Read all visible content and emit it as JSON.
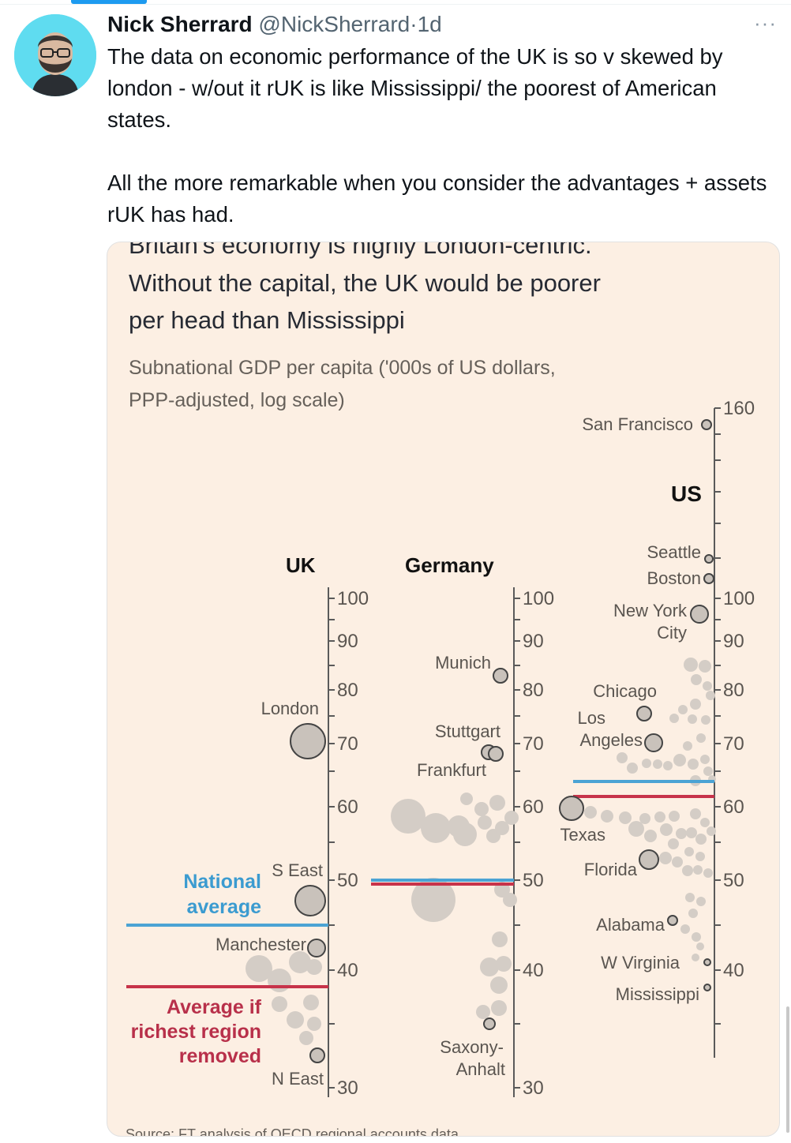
{
  "tweet": {
    "author_name": "Nick Sherrard",
    "author_handle": "@NickSherrard",
    "separator": "·",
    "time": "1d",
    "more": "···",
    "paragraphs": [
      "The data on economic performance of the UK is so v skewed by london - w/out it rUK is like Mississippi/ the poorest of American states.",
      "All the more remarkable when you consider the advantages + assets rUK has had."
    ]
  },
  "colors": {
    "accent": "#1d9bf0",
    "card_bg": "#fcefe3",
    "national_average": "#4ba3d4",
    "average_removed": "#c7334a"
  },
  "chart": {
    "title_partial": "Britain's economy is highly London-centric.",
    "title_line2": "Without the capital, the UK would be poorer",
    "title_line3": "per head than Mississippi",
    "subtitle_line1": "Subnational GDP per capita ('000s of US dollars,",
    "subtitle_line2": "PPP-adjusted, log scale)",
    "source": "Source: FT analysis of OECD regional accounts data",
    "legend_national_1": "National",
    "legend_national_2": "average",
    "legend_removed_1": "Average if",
    "legend_removed_2": "richest region",
    "legend_removed_3": "removed",
    "groups": {
      "uk": "UK",
      "germany": "Germany",
      "us": "US"
    },
    "uk_ticks": [
      "100",
      "90",
      "80",
      "70",
      "60",
      "50",
      "40",
      "30"
    ],
    "de_ticks": [
      "100",
      "90",
      "80",
      "70",
      "60",
      "50",
      "40",
      "30"
    ],
    "us_ticks": [
      "160",
      "100",
      "90",
      "80",
      "70",
      "60",
      "50",
      "40"
    ],
    "labels": {
      "london": "London",
      "s_east": "S East",
      "manchester": "Manchester",
      "n_east": "N East",
      "munich": "Munich",
      "stuttgart": "Stuttgart",
      "frankfurt": "Frankfurt",
      "saxony_1": "Saxony-",
      "saxony_2": "Anhalt",
      "san_francisco": "San Francisco",
      "seattle": "Seattle",
      "boston": "Boston",
      "new_york_1": "New York",
      "new_york_2": "City",
      "chicago": "Chicago",
      "los_angeles_1": "Los",
      "los_angeles_2": "Angeles",
      "texas": "Texas",
      "florida": "Florida",
      "alabama": "Alabama",
      "w_virginia": "W Virginia",
      "mississippi": "Mississippi"
    }
  },
  "chart_data": {
    "type": "scatter",
    "title": "Britain's economy is highly London-centric. Without the capital, the UK would be poorer per head than Mississippi",
    "subtitle": "Subnational GDP per capita ('000s of US dollars, PPP-adjusted, log scale)",
    "scale": "log",
    "ylim": [
      30,
      160
    ],
    "series": [
      {
        "name": "UK",
        "national_average": 46,
        "average_without_richest": 39,
        "labelled_points": [
          {
            "label": "London",
            "value": 70
          },
          {
            "label": "S East",
            "value": 48
          },
          {
            "label": "Manchester",
            "value": 43
          },
          {
            "label": "N East",
            "value": 34
          }
        ]
      },
      {
        "name": "Germany",
        "national_average": 50,
        "average_without_richest": 49.5,
        "labelled_points": [
          {
            "label": "Munich",
            "value": 82
          },
          {
            "label": "Stuttgart",
            "value": 68
          },
          {
            "label": "Frankfurt",
            "value": 68
          },
          {
            "label": "Saxony-Anhalt",
            "value": 37
          }
        ]
      },
      {
        "name": "US",
        "national_average": 64,
        "average_without_richest": 62,
        "labelled_points": [
          {
            "label": "San Francisco",
            "value": 155
          },
          {
            "label": "Seattle",
            "value": 108
          },
          {
            "label": "Boston",
            "value": 103
          },
          {
            "label": "New York City",
            "value": 95
          },
          {
            "label": "Chicago",
            "value": 74
          },
          {
            "label": "Los Angeles",
            "value": 70
          },
          {
            "label": "Texas",
            "value": 60
          },
          {
            "label": "Florida",
            "value": 52
          },
          {
            "label": "Alabama",
            "value": 45
          },
          {
            "label": "W Virginia",
            "value": 41
          },
          {
            "label": "Mississippi",
            "value": 39
          }
        ]
      }
    ]
  }
}
